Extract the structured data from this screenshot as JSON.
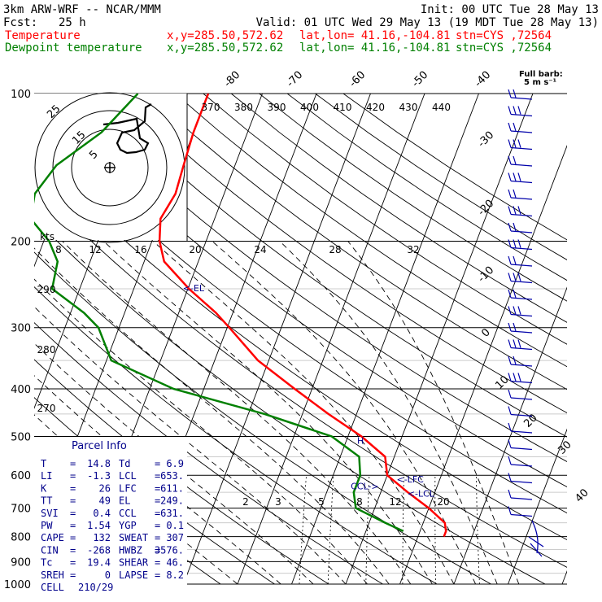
{
  "header": {
    "model": "3km ARW-WRF -- NCAR/MMM",
    "init": "Init: 00 UTC Tue 28 May 13",
    "fcst_label": "Fcst:",
    "fcst_value": "25 h",
    "valid": "Valid: 01 UTC Wed 29 May 13 (19 MDT Tue 28 May 13)",
    "temp_line": {
      "label": "Temperature",
      "xy": "x,y=285.50,572.62",
      "latlon": "lat,lon= 41.16,-104.81",
      "stn": "stn=CYS ,72564"
    },
    "dew_line": {
      "label": "Dewpoint temperature",
      "xy": "x,y=285.50,572.62",
      "latlon": "lat,lon= 41.16,-104.81",
      "stn": "stn=CYS ,72564"
    }
  },
  "colors": {
    "temperature": "#ff0000",
    "dewpoint": "#008000",
    "parcel_text": "#00008b",
    "header_text": "#000000",
    "barb": "#0000aa",
    "hodo": "#000000"
  },
  "barb_legend": {
    "title": "Full barb:",
    "value": "5 m s⁻¹"
  },
  "chart_data": {
    "type": "skew-t",
    "pressure_levels": [
      100,
      200,
      300,
      400,
      500,
      600,
      700,
      800,
      900,
      1000
    ],
    "isotherm_labels_top": [
      "-80",
      "-70",
      "-60",
      "-50",
      "-40"
    ],
    "isotherm_labels_right": [
      "-30",
      "-20",
      "-10",
      "0",
      "10",
      "20",
      "30",
      "40"
    ],
    "theta_e_labels": [
      "370",
      "380",
      "390",
      "400",
      "410",
      "420",
      "430",
      "440"
    ],
    "theta_labels": [
      "290",
      "280",
      "270"
    ],
    "mixing_ratio_labels": [
      "2",
      "3",
      "5",
      "8",
      "12",
      "20"
    ],
    "temperature_profile": {
      "name": "Temperature",
      "pressure": [
        100,
        120,
        140,
        160,
        180,
        200,
        220,
        250,
        280,
        300,
        350,
        400,
        450,
        500,
        550,
        600,
        650,
        700,
        750,
        780,
        800
      ],
      "temp_c": [
        -60,
        -60,
        -59.5,
        -59,
        -60,
        -58.6,
        -56.3,
        -49.8,
        -43.1,
        -39.6,
        -32,
        -23.2,
        -15.2,
        -7.5,
        -1.7,
        0,
        5,
        10,
        14,
        14.8,
        14.8
      ]
    },
    "dewpoint_profile": {
      "name": "Dewpoint temperature",
      "pressure": [
        100,
        120,
        140,
        160,
        180,
        200,
        220,
        250,
        280,
        300,
        350,
        400,
        450,
        500,
        550,
        600,
        650,
        700,
        750,
        780
      ],
      "temp_c": [
        -73,
        -77,
        -83,
        -85,
        -84,
        -79,
        -76,
        -75.1,
        -67.5,
        -63.8,
        -59.1,
        -45.6,
        -27,
        -13,
        -6.5,
        -5,
        -5,
        -3.5,
        3,
        6.9
      ]
    },
    "markers": [
      {
        "label": "<-EL",
        "pressure": 249,
        "temp_c": -51
      },
      {
        "label": "<-LFC",
        "pressure": 611,
        "temp_c": 2
      },
      {
        "label": "CCL->",
        "pressure": 631,
        "temp_c": -6
      },
      {
        "label": "<-LCL",
        "pressure": 653,
        "temp_c": 5
      },
      {
        "label": "H",
        "pressure": 510,
        "temp_c": -8
      }
    ],
    "hodograph": {
      "speed_ring_labels": [
        "5",
        "15",
        "25"
      ],
      "speed_axis_label": "kts",
      "speed_axis_ticks": [
        "8",
        "12",
        "16",
        "20",
        "24",
        "28",
        "32"
      ]
    }
  },
  "parcel_info": {
    "title": "Parcel Info",
    "rows": [
      {
        "l1": "T",
        "v1": "14.8",
        "l2": "Td",
        "v2": "6.9"
      },
      {
        "l1": "LI",
        "v1": "-1.3",
        "l2": "LCL",
        "v2": "653."
      },
      {
        "l1": "K",
        "v1": "26",
        "l2": "LFC",
        "v2": "611."
      },
      {
        "l1": "TT",
        "v1": "49",
        "l2": "EL",
        "v2": "249."
      },
      {
        "l1": "SVI",
        "v1": "0.4",
        "l2": "CCL",
        "v2": "631."
      },
      {
        "l1": "PW",
        "v1": "1.54",
        "l2": "YGP",
        "v2": "0.1"
      },
      {
        "l1": "CAPE",
        "v1": "132",
        "l2": "SWEAT",
        "v2": "307"
      },
      {
        "l1": "CIN",
        "v1": "-268",
        "l2": "HWBZ",
        "v2": "3576."
      },
      {
        "l1": "Tc",
        "v1": "19.4",
        "l2": "SHEAR",
        "v2": "46."
      },
      {
        "l1": "SREH",
        "v1": "0",
        "l2": "LAPSE",
        "v2": "8.2"
      }
    ],
    "cell_label": "CELL",
    "cell_value": "210/29"
  }
}
